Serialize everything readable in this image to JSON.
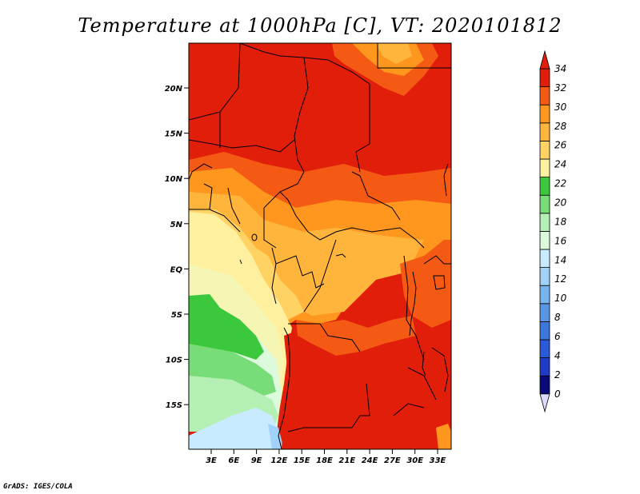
{
  "title": "Temperature at 1000hPa [C], VT: 2020101812",
  "footer": "GrADS: IGES/COLA",
  "lat_ticks": [
    "20N",
    "15N",
    "10N",
    "5N",
    "EQ",
    "5S",
    "10S",
    "15S"
  ],
  "lon_ticks": [
    "3E",
    "6E",
    "9E",
    "12E",
    "15E",
    "18E",
    "21E",
    "24E",
    "27E",
    "30E",
    "33E"
  ],
  "colorbar": {
    "labels": [
      "0",
      "2",
      "4",
      "6",
      "8",
      "10",
      "12",
      "14",
      "16",
      "18",
      "20",
      "22",
      "24",
      "26",
      "28",
      "30",
      "32",
      "34"
    ],
    "colors": [
      "#0a0a78",
      "#1e3cc8",
      "#2b5ad8",
      "#3c78dc",
      "#5a96e6",
      "#78b4f0",
      "#a0d2fa",
      "#c8ebff",
      "#dcfadc",
      "#b4f0b4",
      "#78dc78",
      "#3cc83c",
      "#fff0a0",
      "#ffd264",
      "#ffb43c",
      "#ff961e",
      "#f55a14",
      "#e11e0a"
    ],
    "under_color": "#dcdcfa",
    "over_color": "#e11e0a"
  },
  "palette": {
    "deep_red": "#e11e0a",
    "red_orange": "#f55a14",
    "orange": "#ff961e",
    "light_orange": "#ffb43c",
    "yellow_orange": "#ffd264",
    "pale_yellow": "#fff0a0",
    "green": "#3cc83c",
    "light_green": "#78dc78",
    "pale_green": "#b4f0b4",
    "very_pale_green": "#dcfadc",
    "pale_blue": "#c8ebff",
    "light_blue": "#a0d2fa",
    "border": "#000000"
  }
}
